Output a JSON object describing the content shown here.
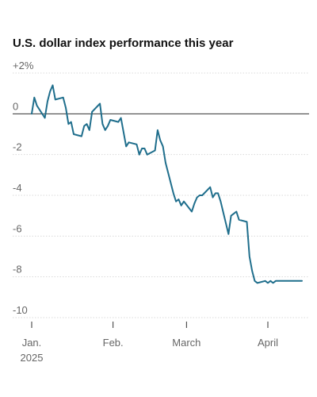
{
  "chart_data": {
    "type": "line",
    "title": "U.S. dollar index performance this year",
    "xlabel": "",
    "ylabel": "",
    "ylim": [
      -10,
      2
    ],
    "y_ticks": [
      {
        "value": 2,
        "label": "+2%"
      },
      {
        "value": 0,
        "label": "0"
      },
      {
        "value": -2,
        "label": "-2"
      },
      {
        "value": -4,
        "label": "-4"
      },
      {
        "value": -6,
        "label": "-6"
      },
      {
        "value": -8,
        "label": "-8"
      },
      {
        "value": -10,
        "label": "-10"
      }
    ],
    "x_ticks": [
      {
        "date": "2025-01-01",
        "label": "Jan.",
        "sublabel": "2025"
      },
      {
        "date": "2025-02-01",
        "label": "Feb.",
        "sublabel": ""
      },
      {
        "date": "2025-03-01",
        "label": "March",
        "sublabel": ""
      },
      {
        "date": "2025-04-01",
        "label": "April",
        "sublabel": ""
      }
    ],
    "grid": true,
    "line_color": "#1f6e8c",
    "series": [
      {
        "x": [
          "2025-01-01",
          "2025-01-02",
          "2025-01-03",
          "2025-01-06",
          "2025-01-07",
          "2025-01-08",
          "2025-01-09",
          "2025-01-10",
          "2025-01-13",
          "2025-01-14",
          "2025-01-15",
          "2025-01-16",
          "2025-01-17",
          "2025-01-20",
          "2025-01-21",
          "2025-01-22",
          "2025-01-23",
          "2025-01-24",
          "2025-01-27",
          "2025-01-28",
          "2025-01-29",
          "2025-01-30",
          "2025-01-31",
          "2025-02-03",
          "2025-02-04",
          "2025-02-05",
          "2025-02-06",
          "2025-02-07",
          "2025-02-10",
          "2025-02-11",
          "2025-02-12",
          "2025-02-13",
          "2025-02-14",
          "2025-02-17",
          "2025-02-18",
          "2025-02-19",
          "2025-02-20",
          "2025-02-21",
          "2025-02-24",
          "2025-02-25",
          "2025-02-26",
          "2025-02-27",
          "2025-02-28",
          "2025-03-03",
          "2025-03-04",
          "2025-03-05",
          "2025-03-06",
          "2025-03-07",
          "2025-03-10",
          "2025-03-11",
          "2025-03-12",
          "2025-03-13",
          "2025-03-14",
          "2025-03-17",
          "2025-03-18",
          "2025-03-19",
          "2025-03-20",
          "2025-03-21",
          "2025-03-24",
          "2025-03-25",
          "2025-03-26",
          "2025-03-27",
          "2025-03-28",
          "2025-03-31",
          "2025-04-01",
          "2025-04-02",
          "2025-04-03",
          "2025-04-04",
          "2025-04-07",
          "2025-04-08",
          "2025-04-09",
          "2025-04-10",
          "2025-04-11",
          "2025-04-14"
        ],
        "values": [
          0,
          0.8,
          0.4,
          -0.2,
          0.6,
          1.1,
          1.4,
          0.7,
          0.8,
          0.3,
          -0.5,
          -0.4,
          -1.0,
          -1.1,
          -0.6,
          -0.5,
          -0.8,
          0.1,
          0.5,
          -0.5,
          -0.8,
          -0.6,
          -0.3,
          -0.4,
          -0.2,
          -0.9,
          -1.6,
          -1.4,
          -1.5,
          -2.0,
          -1.7,
          -1.7,
          -2.0,
          -1.8,
          -0.8,
          -1.3,
          -1.6,
          -2.4,
          -3.9,
          -4.3,
          -4.2,
          -4.5,
          -4.3,
          -4.8,
          -4.4,
          -4.1,
          -4.0,
          -4.0,
          -3.6,
          -4.1,
          -3.9,
          -3.9,
          -4.3,
          -5.9,
          -5.0,
          -4.9,
          -4.8,
          -5.2,
          -5.3,
          -7.0,
          -7.7,
          -8.2,
          -8.3,
          -8.2,
          -8.3,
          -8.2,
          -8.3,
          -8.2,
          -8.2,
          -8.2,
          -8.2,
          -8.2,
          -8.2,
          -8.2
        ]
      }
    ]
  }
}
